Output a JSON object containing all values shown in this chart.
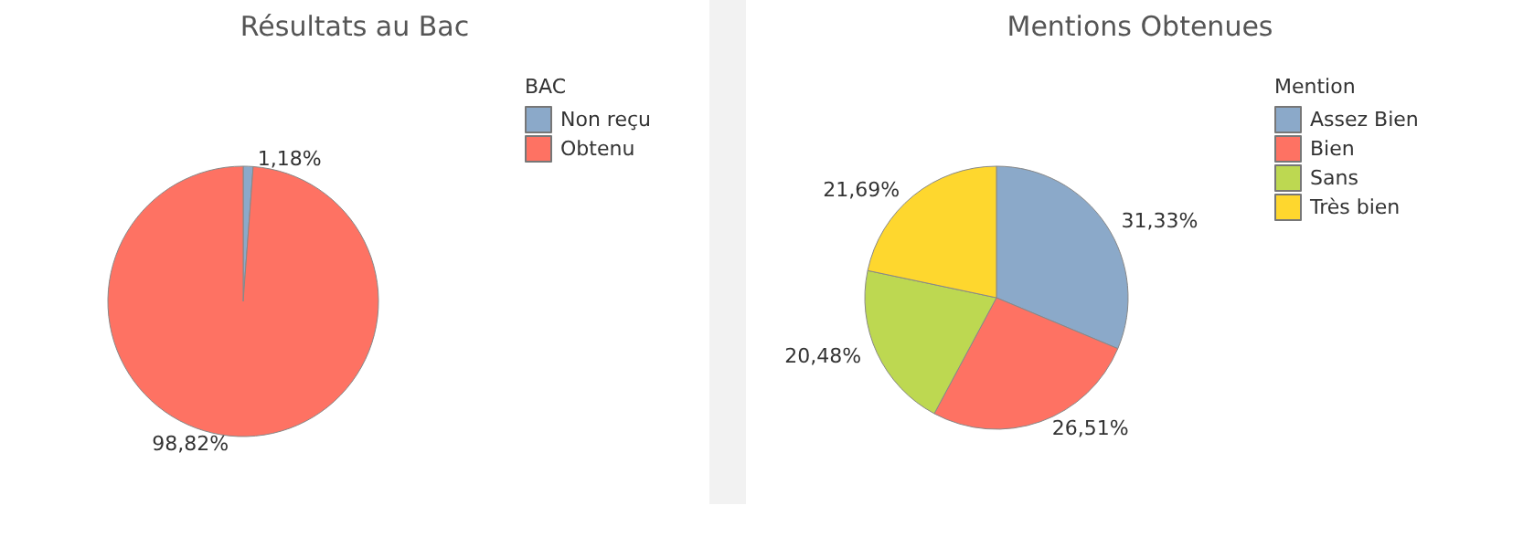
{
  "chart_data": [
    {
      "type": "pie",
      "title": "Résultats au Bac",
      "legend_title": "BAC",
      "legend": "top right",
      "categories": [
        "Non reçu",
        "Obtenu"
      ],
      "values": [
        1.18,
        98.82
      ],
      "colors": [
        "#8ba9c9",
        "#fe7263"
      ],
      "value_labels": [
        "1,18%",
        "98,82%"
      ]
    },
    {
      "type": "pie",
      "title": "Mentions Obtenues",
      "legend_title": "Mention",
      "legend": "top right",
      "categories": [
        "Assez Bien",
        "Bien",
        "Sans",
        "Très bien"
      ],
      "values": [
        31.33,
        26.51,
        20.48,
        21.69
      ],
      "colors": [
        "#8ba9c9",
        "#fe7263",
        "#bdd851",
        "#fed72e"
      ],
      "value_labels": [
        "31,33%",
        "26,51%",
        "20,48%",
        "21,69%"
      ]
    }
  ]
}
